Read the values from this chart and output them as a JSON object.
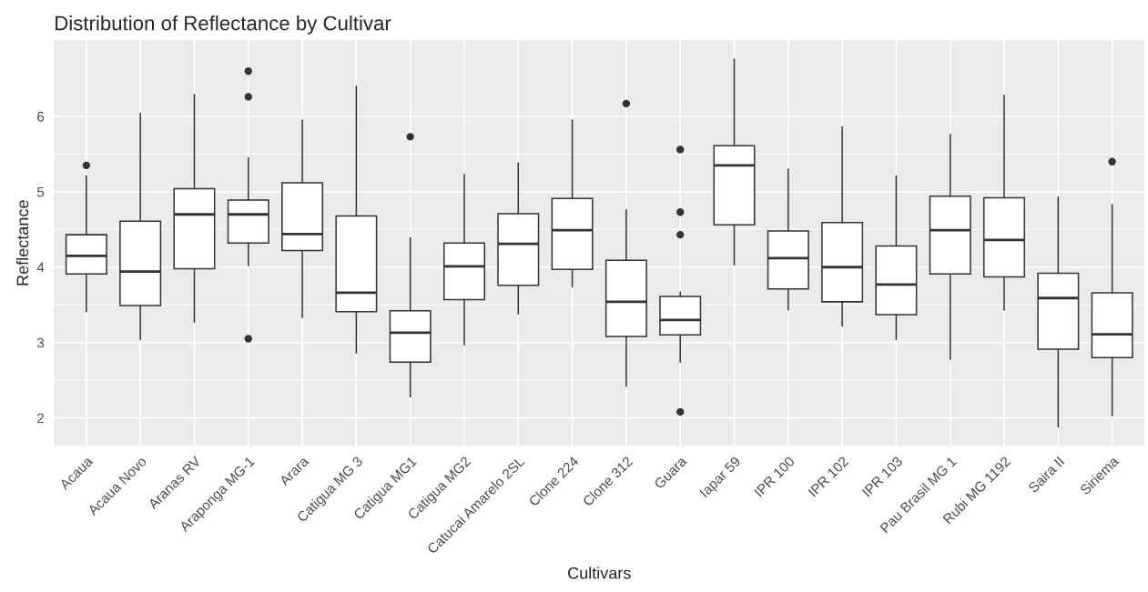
{
  "chart_data": {
    "type": "box",
    "title": "Distribution of Reflectance by Cultivar",
    "xlabel": "Cultivars",
    "ylabel": "Reflectance",
    "categories": [
      "Acaua",
      "Acaua Novo",
      "Aranas RV",
      "Araponga MG-1",
      "Arara",
      "Catigua MG 3",
      "Catigua MG1",
      "Catigua MG2",
      "Catucai Amarelo 2SL",
      "Clone 224",
      "Clone 312",
      "Guara",
      "Iapar 59",
      "IPR 100",
      "IPR 102",
      "IPR 103",
      "Pau Brasil MG 1",
      "Rubi MG 1192",
      "Saira II",
      "Siriema"
    ],
    "boxes": [
      {
        "low": 3.41,
        "q1": 3.91,
        "median": 4.15,
        "q3": 4.43,
        "high": 5.21,
        "outliers": [
          5.35
        ]
      },
      {
        "low": 3.04,
        "q1": 3.49,
        "median": 3.94,
        "q3": 4.61,
        "high": 6.04
      },
      {
        "low": 3.27,
        "q1": 3.98,
        "median": 4.7,
        "q3": 5.04,
        "high": 6.29
      },
      {
        "low": 4.02,
        "q1": 4.32,
        "median": 4.7,
        "q3": 4.89,
        "high": 5.45,
        "outliers": [
          6.6,
          6.26,
          3.05
        ]
      },
      {
        "low": 3.33,
        "q1": 4.22,
        "median": 4.44,
        "q3": 5.12,
        "high": 5.95
      },
      {
        "low": 2.86,
        "q1": 3.41,
        "median": 3.66,
        "q3": 4.68,
        "high": 6.4
      },
      {
        "low": 2.28,
        "q1": 2.74,
        "median": 3.13,
        "q3": 3.42,
        "high": 4.39,
        "outliers": [
          5.73
        ]
      },
      {
        "low": 2.97,
        "q1": 3.57,
        "median": 4.01,
        "q3": 4.32,
        "high": 5.23
      },
      {
        "low": 3.38,
        "q1": 3.76,
        "median": 4.31,
        "q3": 4.71,
        "high": 5.38
      },
      {
        "low": 3.74,
        "q1": 3.97,
        "median": 4.49,
        "q3": 4.91,
        "high": 5.95
      },
      {
        "low": 2.42,
        "q1": 3.08,
        "median": 3.54,
        "q3": 4.09,
        "high": 4.76,
        "outliers": [
          6.17
        ]
      },
      {
        "low": 2.74,
        "q1": 3.1,
        "median": 3.3,
        "q3": 3.61,
        "high": 3.67,
        "outliers": [
          5.56,
          4.73,
          4.43,
          2.08
        ]
      },
      {
        "low": 4.03,
        "q1": 4.56,
        "median": 5.35,
        "q3": 5.61,
        "high": 6.76
      },
      {
        "low": 3.43,
        "q1": 3.71,
        "median": 4.12,
        "q3": 4.48,
        "high": 5.3
      },
      {
        "low": 3.22,
        "q1": 3.54,
        "median": 4.0,
        "q3": 4.59,
        "high": 5.86
      },
      {
        "low": 3.04,
        "q1": 3.37,
        "median": 3.77,
        "q3": 4.28,
        "high": 5.21
      },
      {
        "low": 2.78,
        "q1": 3.91,
        "median": 4.49,
        "q3": 4.94,
        "high": 5.76
      },
      {
        "low": 3.43,
        "q1": 3.87,
        "median": 4.36,
        "q3": 4.92,
        "high": 6.28
      },
      {
        "low": 1.88,
        "q1": 2.91,
        "median": 3.59,
        "q3": 3.92,
        "high": 4.93
      },
      {
        "low": 2.03,
        "q1": 2.8,
        "median": 3.11,
        "q3": 3.66,
        "high": 4.83,
        "outliers": [
          5.4
        ]
      }
    ],
    "ylim": [
      1.63,
      7.01
    ],
    "yticks": [
      2,
      3,
      4,
      5,
      6
    ],
    "grid": true
  }
}
